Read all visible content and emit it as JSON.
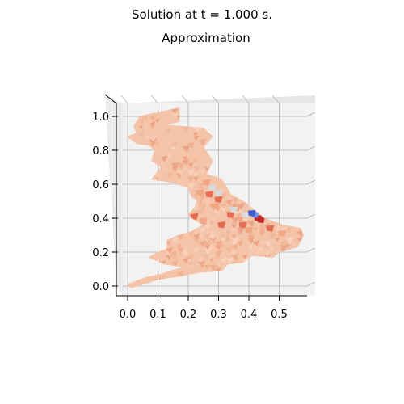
{
  "figure": {
    "suptitle": "Solution at t = 1.000 s.",
    "title": "Approximation"
  },
  "chart_data": {
    "type": "heatmap",
    "title": "Approximation",
    "suptitle": "Solution at t = 1.000 s.",
    "view": "3d-surface-top-down",
    "grid": true,
    "xlim": [
      -0.04,
      0.6
    ],
    "ylim": [
      -0.06,
      1.06
    ],
    "x_ticks": [
      0.0,
      0.1,
      0.2,
      0.3,
      0.4,
      0.5
    ],
    "x_tick_labels": [
      "0.0",
      "0.1",
      "0.2",
      "0.3",
      "0.4",
      "0.5"
    ],
    "y_ticks": [
      0.0,
      0.2,
      0.4,
      0.6,
      0.8,
      1.0
    ],
    "y_tick_labels": [
      "0.0",
      "0.2",
      "0.4",
      "0.6",
      "0.8",
      "1.0"
    ],
    "colormap": "coolwarm",
    "colors": {
      "base": "#f4c3a8",
      "warm_mid": "#f0a585",
      "warm_high": "#e56d52",
      "hot": "#c0282a",
      "neutral": "#d9d9dc",
      "cool": "#6d8fef",
      "cool_deep": "#3f5fd0",
      "pane": "#f2f2f2",
      "grid": "#b0b0b0"
    },
    "domain_outline": [
      [
        0.04,
        1.0
      ],
      [
        0.17,
        1.05
      ],
      [
        0.17,
        0.97
      ],
      [
        0.12,
        0.95
      ],
      [
        0.25,
        0.93
      ],
      [
        0.28,
        0.88
      ],
      [
        0.25,
        0.82
      ],
      [
        0.28,
        0.74
      ],
      [
        0.26,
        0.66
      ],
      [
        0.31,
        0.63
      ],
      [
        0.34,
        0.54
      ],
      [
        0.38,
        0.5
      ],
      [
        0.41,
        0.46
      ],
      [
        0.45,
        0.4
      ],
      [
        0.51,
        0.36
      ],
      [
        0.57,
        0.34
      ],
      [
        0.58,
        0.3
      ],
      [
        0.56,
        0.23
      ],
      [
        0.5,
        0.2
      ],
      [
        0.48,
        0.17
      ],
      [
        0.41,
        0.18
      ],
      [
        0.38,
        0.14
      ],
      [
        0.33,
        0.13
      ],
      [
        0.31,
        0.09
      ],
      [
        0.23,
        0.08
      ],
      [
        0.18,
        0.06
      ],
      [
        0.1,
        0.04
      ],
      [
        0.05,
        0.01
      ],
      [
        0.01,
        -0.01
      ],
      [
        0.0,
        0.01
      ],
      [
        0.03,
        0.03
      ],
      [
        0.06,
        0.05
      ],
      [
        0.11,
        0.07
      ],
      [
        0.16,
        0.1
      ],
      [
        0.19,
        0.11
      ],
      [
        0.12,
        0.13
      ],
      [
        0.07,
        0.17
      ],
      [
        0.09,
        0.19
      ],
      [
        0.13,
        0.22
      ],
      [
        0.13,
        0.27
      ],
      [
        0.17,
        0.3
      ],
      [
        0.21,
        0.32
      ],
      [
        0.25,
        0.36
      ],
      [
        0.22,
        0.39
      ],
      [
        0.2,
        0.42
      ],
      [
        0.22,
        0.46
      ],
      [
        0.23,
        0.5
      ],
      [
        0.21,
        0.53
      ],
      [
        0.2,
        0.58
      ],
      [
        0.15,
        0.61
      ],
      [
        0.08,
        0.63
      ],
      [
        0.11,
        0.7
      ],
      [
        0.08,
        0.74
      ],
      [
        0.09,
        0.8
      ],
      [
        0.07,
        0.83
      ],
      [
        0.03,
        0.84
      ],
      [
        0.0,
        0.88
      ],
      [
        0.03,
        0.9
      ],
      [
        0.02,
        0.94
      ],
      [
        0.04,
        1.0
      ]
    ],
    "hot_spots": [
      {
        "x": 0.43,
        "y": 0.4,
        "value": "hot"
      },
      {
        "x": 0.44,
        "y": 0.39,
        "value": "hot"
      },
      {
        "x": 0.27,
        "y": 0.54,
        "value": "warm_high"
      },
      {
        "x": 0.3,
        "y": 0.51,
        "value": "warm_high"
      },
      {
        "x": 0.34,
        "y": 0.42,
        "value": "warm_high"
      },
      {
        "x": 0.22,
        "y": 0.41,
        "value": "warm_high"
      },
      {
        "x": 0.38,
        "y": 0.36,
        "value": "warm_high"
      },
      {
        "x": 0.47,
        "y": 0.34,
        "value": "warm_high"
      },
      {
        "x": 0.31,
        "y": 0.36,
        "value": "warm_high"
      },
      {
        "x": 0.26,
        "y": 0.61,
        "value": "warm_mid"
      },
      {
        "x": 0.24,
        "y": 0.55,
        "value": "warm_mid"
      },
      {
        "x": 0.29,
        "y": 0.47,
        "value": "warm_mid"
      },
      {
        "x": 0.36,
        "y": 0.46,
        "value": "warm_mid"
      },
      {
        "x": 0.4,
        "y": 0.33,
        "value": "warm_mid"
      },
      {
        "x": 0.25,
        "y": 0.38,
        "value": "warm_mid"
      },
      {
        "x": 0.19,
        "y": 0.39,
        "value": "warm_mid"
      },
      {
        "x": 0.51,
        "y": 0.31,
        "value": "warm_mid"
      },
      {
        "x": 0.28,
        "y": 0.58,
        "value": "neutral"
      },
      {
        "x": 0.3,
        "y": 0.55,
        "value": "neutral"
      },
      {
        "x": 0.35,
        "y": 0.45,
        "value": "neutral"
      },
      {
        "x": 0.39,
        "y": 0.42,
        "value": "neutral"
      },
      {
        "x": 0.42,
        "y": 0.42,
        "value": "cool"
      },
      {
        "x": 0.41,
        "y": 0.43,
        "value": "cool_deep"
      }
    ]
  }
}
